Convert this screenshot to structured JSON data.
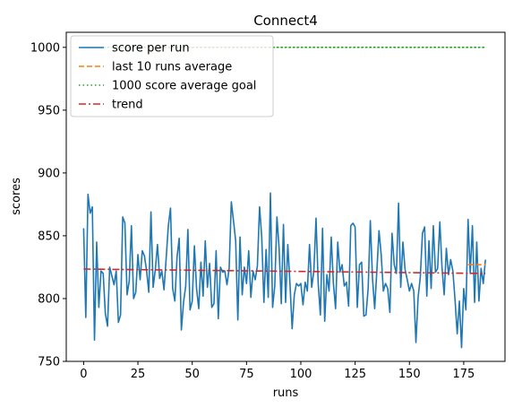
{
  "chart_data": {
    "type": "line",
    "title": "Connect4",
    "xlabel": "runs",
    "ylabel": "scores",
    "xlim": [
      -8,
      194
    ],
    "ylim": [
      750,
      1012
    ],
    "xticks": [
      0,
      25,
      50,
      75,
      100,
      125,
      150,
      175
    ],
    "yticks": [
      750,
      800,
      850,
      900,
      950,
      1000
    ],
    "grid": false,
    "legend_position": "top-left",
    "series": [
      {
        "name": "score per run",
        "color": "#1f77b4",
        "style": "solid",
        "x_start": 0,
        "values": [
          856,
          785,
          883,
          868,
          873,
          767,
          845,
          793,
          822,
          820,
          788,
          778,
          825,
          818,
          811,
          822,
          781,
          787,
          865,
          860,
          803,
          814,
          858,
          800,
          805,
          835,
          815,
          838,
          834,
          822,
          805,
          869,
          809,
          823,
          843,
          816,
          822,
          807,
          832,
          858,
          872,
          808,
          798,
          833,
          848,
          775,
          797,
          810,
          855,
          791,
          798,
          842,
          808,
          792,
          829,
          802,
          846,
          809,
          828,
          793,
          796,
          838,
          784,
          825,
          821,
          822,
          811,
          824,
          877,
          862,
          846,
          783,
          849,
          803,
          825,
          812,
          838,
          801,
          822,
          815,
          826,
          873,
          849,
          797,
          839,
          801,
          884,
          793,
          810,
          865,
          840,
          796,
          859,
          797,
          843,
          812,
          776,
          803,
          812,
          810,
          812,
          795,
          813,
          806,
          843,
          809,
          822,
          864,
          812,
          787,
          856,
          782,
          819,
          806,
          849,
          812,
          792,
          845,
          821,
          827,
          810,
          813,
          794,
          858,
          860,
          857,
          793,
          827,
          829,
          786,
          787,
          808,
          862,
          816,
          792,
          822,
          854,
          835,
          806,
          812,
          808,
          789,
          852,
          827,
          820,
          876,
          809,
          845,
          823,
          815,
          806,
          812,
          806,
          765,
          801,
          817,
          852,
          857,
          802,
          846,
          808,
          858,
          821,
          824,
          861,
          825,
          803,
          840,
          819,
          831,
          822,
          799,
          772,
          798,
          761,
          808,
          791,
          863,
          820,
          858,
          797,
          845,
          798,
          824,
          812,
          831
        ],
        "values_note_removed": true
      },
      {
        "name": "last 10 runs average",
        "color": "#ff7f0e",
        "style": "dashed",
        "x": [
          177,
          185
        ],
        "values": [
          827,
          827
        ]
      },
      {
        "name": "1000 score average goal",
        "color": "#2ca02c",
        "style": "dotted",
        "x": [
          0,
          185
        ],
        "values": [
          1000,
          1000
        ]
      },
      {
        "name": "trend",
        "color": "#d62728",
        "style": "dashdot",
        "x": [
          0,
          185
        ],
        "values": [
          823.5,
          820
        ]
      }
    ]
  }
}
